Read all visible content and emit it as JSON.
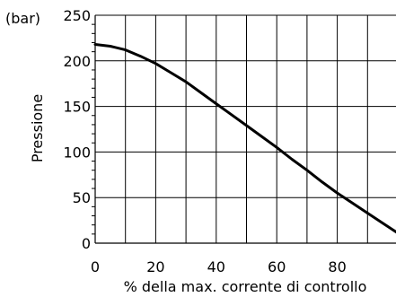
{
  "chart_data": {
    "type": "line",
    "title": "",
    "xlabel": "% della max. corrente di controllo",
    "ylabel": "Pressione",
    "yunit": "(bar)",
    "xlim": [
      0,
      100
    ],
    "ylim": [
      0,
      250
    ],
    "x_ticks": [
      0,
      20,
      40,
      60,
      80
    ],
    "y_ticks": [
      0,
      50,
      100,
      150,
      200,
      250
    ],
    "grid": true,
    "legend": "none",
    "line_color": "#000000",
    "series": [
      {
        "x": [
          0,
          5,
          10,
          15,
          20,
          25,
          30,
          35,
          40,
          45,
          50,
          55,
          60,
          65,
          70,
          75,
          80,
          85,
          90,
          95,
          100
        ],
        "y": [
          218,
          216,
          212,
          205,
          197,
          187,
          177,
          165,
          153,
          141,
          129,
          117,
          105,
          92,
          80,
          67,
          55,
          44,
          33,
          22,
          11
        ]
      }
    ]
  }
}
